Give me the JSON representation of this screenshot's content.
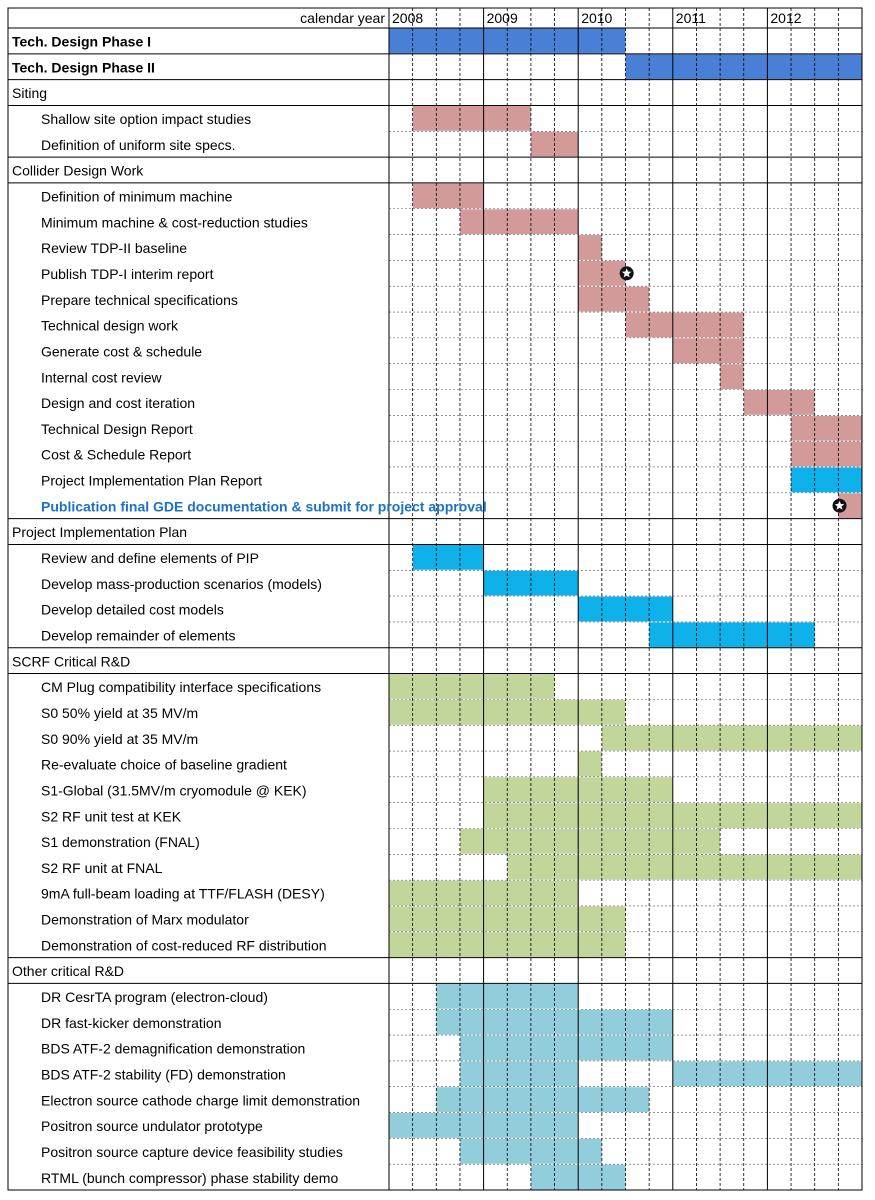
{
  "chart_data": {
    "type": "gantt",
    "header_label": "calendar year",
    "years": [
      "2008",
      "2009",
      "2010",
      "2011",
      "2012"
    ],
    "time_unit": "quarter",
    "timeline_start": "2008 Q1",
    "timeline_end": "2012 Q4",
    "colors": {
      "phase": "#4a7fd6",
      "collider": "#d39a9a",
      "pip": "#0fb1ea",
      "scrf": "#c2d59b",
      "other": "#92cddc",
      "highlight_text": "#1a73c8"
    },
    "rows": [
      {
        "label": "Tech. Design Phase I",
        "kind": "phase",
        "color": "phase",
        "bars": [
          [
            "2008 Q1",
            "2010 Q2"
          ]
        ]
      },
      {
        "label": "Tech. Design Phase II",
        "kind": "phase",
        "color": "phase",
        "bars": [
          [
            "2010 Q3",
            "2012 Q4"
          ]
        ]
      },
      {
        "label": "Siting",
        "kind": "section"
      },
      {
        "label": "Shallow site option impact studies",
        "kind": "task",
        "color": "collider",
        "bars": [
          [
            "2008 Q2",
            "2009 Q2"
          ]
        ]
      },
      {
        "label": "Definition of uniform site specs.",
        "kind": "task",
        "color": "collider",
        "bars": [
          [
            "2009 Q3",
            "2009 Q4"
          ]
        ]
      },
      {
        "label": "Collider Design Work",
        "kind": "section"
      },
      {
        "label": "Definition of minimum machine",
        "kind": "task",
        "color": "collider",
        "bars": [
          [
            "2008 Q2",
            "2008 Q4"
          ]
        ]
      },
      {
        "label": "Minimum machine & cost-reduction studies",
        "kind": "task",
        "color": "collider",
        "bars": [
          [
            "2008 Q4",
            "2009 Q4"
          ]
        ]
      },
      {
        "label": "Review TDP-II baseline",
        "kind": "task",
        "color": "collider",
        "bars": [
          [
            "2010 Q1",
            "2010 Q1"
          ]
        ]
      },
      {
        "label": "Publish TDP-I interim report",
        "kind": "task",
        "color": "collider",
        "bars": [
          [
            "2010 Q1",
            "2010 Q2"
          ]
        ],
        "milestone": "2010 Q3"
      },
      {
        "label": "Prepare technical specifications",
        "kind": "task",
        "color": "collider",
        "bars": [
          [
            "2010 Q1",
            "2010 Q3"
          ]
        ]
      },
      {
        "label": "Technical design work",
        "kind": "task",
        "color": "collider",
        "bars": [
          [
            "2010 Q3",
            "2011 Q3"
          ]
        ]
      },
      {
        "label": "Generate cost & schedule",
        "kind": "task",
        "color": "collider",
        "bars": [
          [
            "2011 Q1",
            "2011 Q3"
          ]
        ]
      },
      {
        "label": "Internal cost review",
        "kind": "task",
        "color": "collider",
        "bars": [
          [
            "2011 Q3",
            "2011 Q3"
          ]
        ]
      },
      {
        "label": "Design and cost iteration",
        "kind": "task",
        "color": "collider",
        "bars": [
          [
            "2011 Q4",
            "2012 Q2"
          ]
        ]
      },
      {
        "label": "Technical Design Report",
        "kind": "task",
        "color": "collider",
        "bars": [
          [
            "2012 Q2",
            "2012 Q4"
          ]
        ]
      },
      {
        "label": "Cost & Schedule Report",
        "kind": "task",
        "color": "collider",
        "bars": [
          [
            "2012 Q2",
            "2012 Q4"
          ]
        ]
      },
      {
        "label": "Project Implementation Plan Report",
        "kind": "task",
        "color": "pip",
        "bars": [
          [
            "2012 Q2",
            "2012 Q4"
          ]
        ]
      },
      {
        "label": "Publication final GDE documentation & submit for project approval",
        "kind": "highlight",
        "color": "collider",
        "bars": [
          [
            "2012 Q4",
            "2012 Q4"
          ]
        ],
        "milestone": "2012 Q4"
      },
      {
        "label": "Project Implementation Plan",
        "kind": "section"
      },
      {
        "label": "Review and define elements of PIP",
        "kind": "task",
        "color": "pip",
        "bars": [
          [
            "2008 Q2",
            "2008 Q4"
          ]
        ]
      },
      {
        "label": "Develop mass-production scenarios (models)",
        "kind": "task",
        "color": "pip",
        "bars": [
          [
            "2009 Q1",
            "2009 Q4"
          ]
        ]
      },
      {
        "label": "Develop detailed cost models",
        "kind": "task",
        "color": "pip",
        "bars": [
          [
            "2010 Q1",
            "2010 Q4"
          ]
        ]
      },
      {
        "label": "Develop remainder of elements",
        "kind": "task",
        "color": "pip",
        "bars": [
          [
            "2010 Q4",
            "2012 Q2"
          ]
        ]
      },
      {
        "label": "SCRF Critical R&D",
        "kind": "section"
      },
      {
        "label": "CM Plug compatibility interface specifications",
        "kind": "task",
        "color": "scrf",
        "bars": [
          [
            "2008 Q1",
            "2009 Q3"
          ]
        ]
      },
      {
        "label": "S0 50% yield at 35 MV/m",
        "kind": "task",
        "color": "scrf",
        "bars": [
          [
            "2008 Q1",
            "2010 Q2"
          ]
        ]
      },
      {
        "label": "S0 90% yield at 35 MV/m",
        "kind": "task",
        "color": "scrf",
        "bars": [
          [
            "2010 Q2",
            "2012 Q4"
          ]
        ]
      },
      {
        "label": "Re-evaluate choice of baseline gradient",
        "kind": "task",
        "color": "scrf",
        "bars": [
          [
            "2010 Q1",
            "2010 Q1"
          ]
        ]
      },
      {
        "label": "S1-Global (31.5MV/m cryomodule @ KEK)",
        "kind": "task",
        "color": "scrf",
        "bars": [
          [
            "2009 Q1",
            "2010 Q4"
          ]
        ]
      },
      {
        "label": "S2 RF unit test at KEK",
        "kind": "task",
        "color": "scrf",
        "bars": [
          [
            "2009 Q1",
            "2012 Q4"
          ]
        ]
      },
      {
        "label": "S1 demonstration (FNAL)",
        "kind": "task",
        "color": "scrf",
        "bars": [
          [
            "2008 Q4",
            "2011 Q2"
          ]
        ]
      },
      {
        "label": "S2 RF unit at FNAL",
        "kind": "task",
        "color": "scrf",
        "bars": [
          [
            "2009 Q2",
            "2012 Q4"
          ]
        ]
      },
      {
        "label": "9mA full-beam loading at TTF/FLASH (DESY)",
        "kind": "task",
        "color": "scrf",
        "bars": [
          [
            "2008 Q1",
            "2009 Q4"
          ]
        ]
      },
      {
        "label": "Demonstration of Marx modulator",
        "kind": "task",
        "color": "scrf",
        "bars": [
          [
            "2008 Q1",
            "2010 Q2"
          ]
        ]
      },
      {
        "label": "Demonstration of cost-reduced RF distribution",
        "kind": "task",
        "color": "scrf",
        "bars": [
          [
            "2008 Q1",
            "2010 Q2"
          ]
        ]
      },
      {
        "label": "Other critical R&D",
        "kind": "section"
      },
      {
        "label": "DR CesrTA program (electron-cloud)",
        "kind": "task",
        "color": "other",
        "bars": [
          [
            "2008 Q3",
            "2009 Q4"
          ]
        ]
      },
      {
        "label": "DR fast-kicker demonstration",
        "kind": "task",
        "color": "other",
        "bars": [
          [
            "2008 Q3",
            "2010 Q4"
          ]
        ]
      },
      {
        "label": "BDS ATF-2 demagnification demonstration",
        "kind": "task",
        "color": "other",
        "bars": [
          [
            "2008 Q4",
            "2010 Q4"
          ]
        ]
      },
      {
        "label": "BDS ATF-2 stability (FD) demonstration",
        "kind": "task",
        "color": "other",
        "bars": [
          [
            "2008 Q4",
            "2009 Q4"
          ],
          [
            "2011 Q1",
            "2012 Q4"
          ]
        ]
      },
      {
        "label": "Electron source cathode charge limit demonstration",
        "kind": "task",
        "color": "other",
        "bars": [
          [
            "2008 Q3",
            "2010 Q3"
          ]
        ]
      },
      {
        "label": "Positron source undulator prototype",
        "kind": "task",
        "color": "other",
        "bars": [
          [
            "2008 Q1",
            "2009 Q4"
          ]
        ]
      },
      {
        "label": "Positron source capture device feasibility studies",
        "kind": "task",
        "color": "other",
        "bars": [
          [
            "2008 Q4",
            "2010 Q1"
          ]
        ]
      },
      {
        "label": "RTML (bunch compressor) phase stability demo",
        "kind": "task",
        "color": "other",
        "bars": [
          [
            "2009 Q3",
            "2010 Q2"
          ]
        ]
      }
    ]
  }
}
